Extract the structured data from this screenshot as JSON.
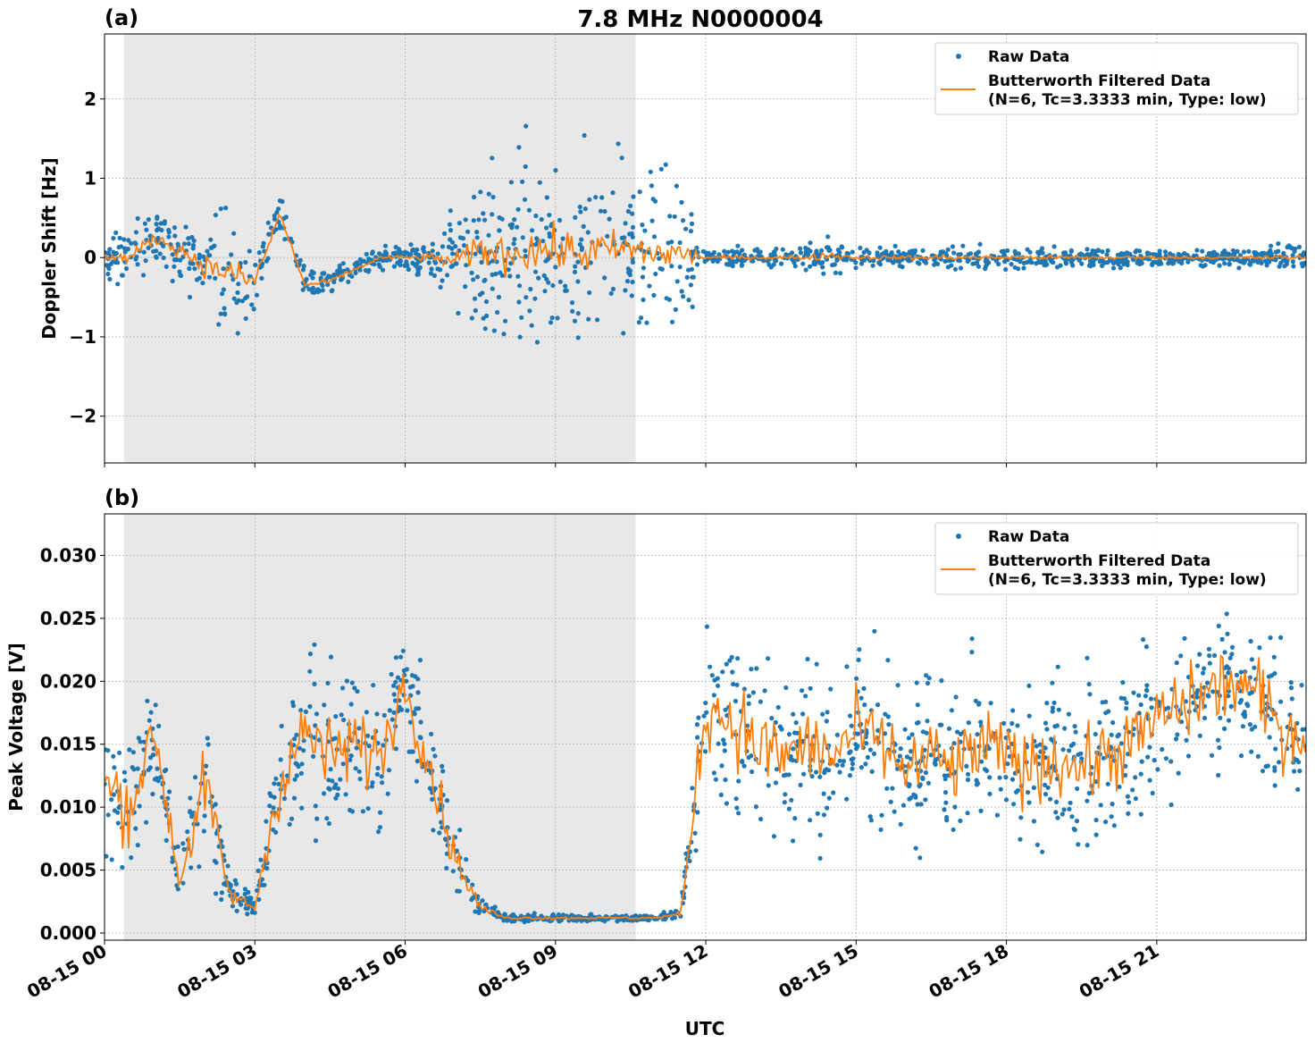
{
  "title": "7.8 MHz N0000004",
  "chart_data": [
    {
      "panel_label": "(a)",
      "type": "scatter+line",
      "ylabel": "Doppler Shift [Hz]",
      "xlabel": "",
      "ylim": [
        -2.59,
        2.82
      ],
      "yticks": [
        -2,
        -1,
        0,
        1,
        2
      ],
      "ytick_labels": [
        "−2",
        "−1",
        "0",
        "1",
        "2"
      ],
      "grid": true,
      "legend": "top-right",
      "legend_entries": [
        "Raw Data",
        "Butterworth Filtered Data",
        "(N=6, Tc=3.3333 min, Type: low)"
      ],
      "shaded_interval_hours": [
        0.39,
        10.6
      ],
      "x_hours": [
        0,
        0.5,
        1,
        1.5,
        2,
        2.5,
        3,
        3.5,
        4,
        4.5,
        5,
        5.5,
        6,
        6.5,
        7,
        7.5,
        8,
        8.5,
        9,
        9.5,
        10,
        10.5,
        11,
        11.5,
        12,
        12.5,
        13,
        13.5,
        14,
        14.5,
        15,
        15.5,
        16,
        16.5,
        17,
        17.5,
        18,
        18.5,
        19,
        19.5,
        20,
        20.5,
        21,
        21.5,
        22,
        22.5,
        23,
        23.5
      ],
      "series": [
        {
          "name": "Butterworth Filtered Data",
          "values": [
            0.0,
            0.0,
            0.25,
            0.1,
            -0.1,
            -0.2,
            -0.3,
            0.55,
            -0.35,
            -0.3,
            -0.15,
            0.0,
            0.0,
            0.0,
            -0.05,
            0.1,
            0.05,
            0.1,
            0.1,
            0.05,
            0.1,
            0.1,
            0.05,
            0.05,
            0.0,
            0.0,
            0.0,
            0.0,
            0.0,
            0.03,
            0.0,
            0.0,
            0.0,
            0.0,
            0.0,
            0.0,
            0.0,
            0.0,
            0.0,
            0.0,
            0.0,
            0.0,
            0.0,
            0.0,
            0.0,
            0.0,
            0.0,
            0.0
          ]
        },
        {
          "name": "Raw Data",
          "spread": [
            0.3,
            0.4,
            0.45,
            0.5,
            0.8,
            1.0,
            0.8,
            0.3,
            0.2,
            0.2,
            0.15,
            0.15,
            0.15,
            0.3,
            0.6,
            1.2,
            1.4,
            1.5,
            1.5,
            1.5,
            1.4,
            1.3,
            1.2,
            1.2,
            0.12,
            0.15,
            0.15,
            0.15,
            0.2,
            0.3,
            0.15,
            0.15,
            0.15,
            0.15,
            0.2,
            0.15,
            0.15,
            0.15,
            0.15,
            0.15,
            0.15,
            0.15,
            0.12,
            0.12,
            0.12,
            0.12,
            0.15,
            0.2
          ]
        }
      ]
    },
    {
      "panel_label": "(b)",
      "type": "scatter+line",
      "ylabel": "Peak Voltage [V]",
      "xlabel": "UTC",
      "ylim": [
        -0.00057,
        0.0333
      ],
      "yticks": [
        0.0,
        0.005,
        0.01,
        0.015,
        0.02,
        0.025,
        0.03
      ],
      "ytick_labels": [
        "0.000",
        "0.005",
        "0.010",
        "0.015",
        "0.020",
        "0.025",
        "0.030"
      ],
      "grid": true,
      "legend": "top-right",
      "legend_entries": [
        "Raw Data",
        "Butterworth Filtered Data",
        "(N=6, Tc=3.3333 min, Type: low)"
      ],
      "shaded_interval_hours": [
        0.39,
        10.6
      ],
      "xlim_hours": [
        0,
        23.98
      ],
      "xticks_hours": [
        0,
        3,
        6,
        9,
        12,
        15,
        18,
        21
      ],
      "xtick_labels": [
        "08-15 00",
        "08-15 03",
        "08-15 06",
        "08-15 09",
        "08-15 12",
        "08-15 15",
        "08-15 18",
        "08-15 21"
      ],
      "x_hours": [
        0,
        0.5,
        1,
        1.5,
        2,
        2.5,
        3,
        3.5,
        4,
        4.5,
        5,
        5.5,
        6,
        6.5,
        7,
        7.5,
        8,
        8.5,
        9,
        9.5,
        10,
        10.5,
        11,
        11.5,
        12,
        12.5,
        13,
        13.5,
        14,
        14.5,
        15,
        15.5,
        16,
        16.5,
        17,
        17.5,
        18,
        18.5,
        19,
        19.5,
        20,
        20.5,
        21,
        21.5,
        22,
        22.5,
        23,
        23.5
      ],
      "series": [
        {
          "name": "Butterworth Filtered Data",
          "values": [
            0.012,
            0.01,
            0.016,
            0.004,
            0.012,
            0.003,
            0.002,
            0.012,
            0.016,
            0.014,
            0.015,
            0.014,
            0.02,
            0.013,
            0.006,
            0.002,
            0.0012,
            0.0012,
            0.0012,
            0.0012,
            0.0012,
            0.0012,
            0.0012,
            0.0015,
            0.018,
            0.017,
            0.015,
            0.014,
            0.015,
            0.014,
            0.016,
            0.015,
            0.013,
            0.014,
            0.013,
            0.015,
            0.014,
            0.013,
            0.014,
            0.013,
            0.014,
            0.015,
            0.017,
            0.018,
            0.019,
            0.02,
            0.019,
            0.016
          ]
        },
        {
          "name": "Raw Data",
          "spread": [
            0.007,
            0.008,
            0.007,
            0.003,
            0.008,
            0.002,
            0.001,
            0.007,
            0.009,
            0.008,
            0.008,
            0.007,
            0.006,
            0.006,
            0.004,
            0.001,
            0.0003,
            0.0003,
            0.0004,
            0.0003,
            0.0003,
            0.0003,
            0.0003,
            0.0005,
            0.009,
            0.009,
            0.009,
            0.008,
            0.008,
            0.008,
            0.008,
            0.008,
            0.008,
            0.008,
            0.008,
            0.008,
            0.008,
            0.008,
            0.008,
            0.008,
            0.008,
            0.008,
            0.008,
            0.008,
            0.008,
            0.008,
            0.008,
            0.008
          ]
        }
      ]
    }
  ],
  "colors": {
    "raw": "#1f77b4",
    "filtered": "#ff7f0e",
    "shade": "#e8e8e8",
    "grid": "#b0b0b0"
  }
}
